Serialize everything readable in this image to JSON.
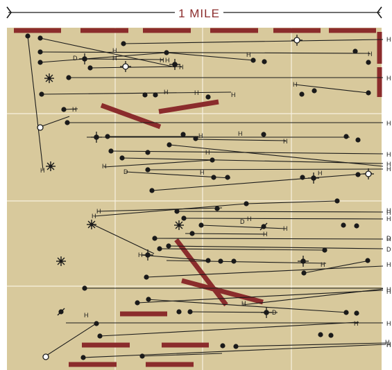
{
  "scale_bar": {
    "label": "1 MILE"
  },
  "colors": {
    "background": "#d8c99c",
    "grid": "#f7f1e0",
    "well_line": "#1a1a1a",
    "lease_bar": "#8b2c2c",
    "scale_text": "#8b2c2c"
  },
  "legend_symbols": {
    "dry-hole": "filled dot",
    "oil-well": "dot with cross",
    "gas-well": "open circle with cross",
    "abandoned": "asterisk"
  },
  "end_labels": {
    "right": [
      "H",
      "H",
      "H",
      "H",
      "H",
      "H",
      "H",
      "H",
      "H",
      "H",
      "H",
      "H",
      "D",
      "D",
      "H",
      "H",
      "H",
      "H",
      "H",
      "H"
    ],
    "interior": [
      "D",
      "H",
      "H",
      "H",
      "H",
      "H",
      "H",
      "H",
      "H",
      "H",
      "H",
      "H",
      "H",
      "H",
      "H",
      "H",
      "H",
      "H",
      "D",
      "H",
      "H",
      "H",
      "H",
      "H",
      "H",
      "D",
      "H",
      "H",
      "H",
      "H",
      "H",
      "D",
      "H",
      "H",
      "H"
    ]
  }
}
